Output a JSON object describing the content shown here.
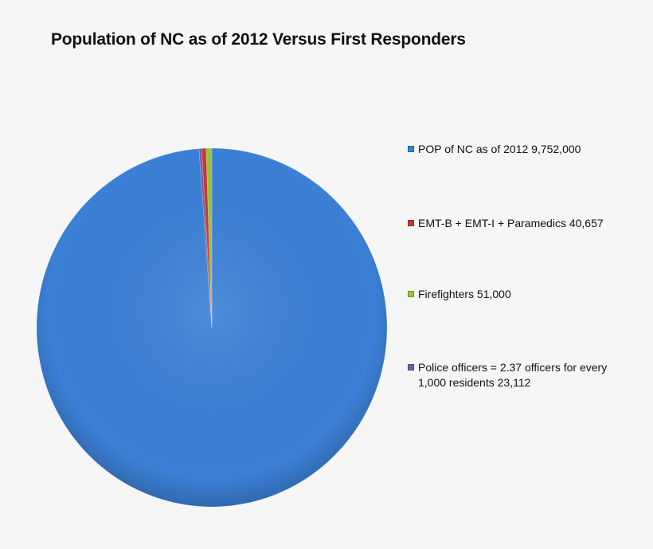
{
  "chart_data": {
    "type": "pie",
    "title": "Population of NC as of 2012 Versus First Responders",
    "legend_position": "right",
    "slices": [
      {
        "label": "POP of NC as of 2012 9,752,000",
        "value": 9752000,
        "color": "#3b80d6"
      },
      {
        "label": "EMT-B + EMT-I + Paramedics 40,657",
        "value": 40657,
        "color": "#c43a35"
      },
      {
        "label": "Firefighters 51,000",
        "value": 51000,
        "color": "#9ac43c"
      },
      {
        "label": "Police officers = 2.37 officers for every 1,000 residents 23,112",
        "value": 23112,
        "color": "#7a5aa6"
      }
    ]
  }
}
